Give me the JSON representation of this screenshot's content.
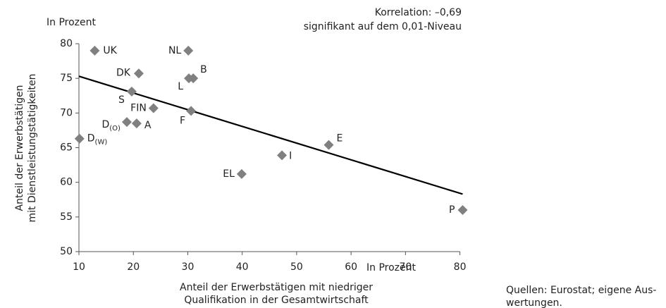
{
  "chart_data": {
    "type": "scatter",
    "y_unit": "In Prozent",
    "x_unit": "In Prozent",
    "ylabel": [
      "Anteil der Erwerbstätigen",
      "mit Dienstleistungstätigkeiten"
    ],
    "xlabel": [
      "Anteil der Erwerbstätigen mit niedriger",
      "Qualifikation in der Gesamtwirtschaft"
    ],
    "annotation": [
      "Korrelation: –0,69",
      "signifikant auf dem 0,01-Niveau"
    ],
    "source": [
      "Quellen: Eurostat; eigene Aus-",
      "wertungen."
    ],
    "xlim": [
      10,
      80
    ],
    "xticks": [
      10,
      20,
      30,
      40,
      50,
      60,
      70,
      80
    ],
    "ylim": [
      50,
      80
    ],
    "yticks": [
      50,
      55,
      60,
      65,
      70,
      75,
      80
    ],
    "color": "#808080",
    "points": [
      {
        "name": "UK",
        "x": 12.9,
        "y": 79.0
      },
      {
        "name": "DK",
        "x": 21.0,
        "y": 75.7
      },
      {
        "name": "NL",
        "x": 30.1,
        "y": 79.0
      },
      {
        "name": "B",
        "x": 31.0,
        "y": 75.0
      },
      {
        "name": "L",
        "x": 30.2,
        "y": 75.0
      },
      {
        "name": "S",
        "x": 19.7,
        "y": 73.1
      },
      {
        "name": "FIN",
        "x": 23.7,
        "y": 70.7
      },
      {
        "name": "F",
        "x": 30.6,
        "y": 70.3
      },
      {
        "name": "D",
        "sub": "(O)",
        "x": 18.8,
        "y": 68.7
      },
      {
        "name": "A",
        "x": 20.6,
        "y": 68.5
      },
      {
        "name": "D",
        "sub": "(W)",
        "x": 10.1,
        "y": 66.3
      },
      {
        "name": "E",
        "x": 55.9,
        "y": 65.4
      },
      {
        "name": "I",
        "x": 47.3,
        "y": 63.9
      },
      {
        "name": "EL",
        "x": 39.9,
        "y": 61.2
      },
      {
        "name": "P",
        "x": 80.5,
        "y": 56.0
      }
    ],
    "trendline": {
      "x": [
        10,
        80.5
      ],
      "y": [
        75.3,
        58.3
      ],
      "color": "#000000"
    }
  }
}
